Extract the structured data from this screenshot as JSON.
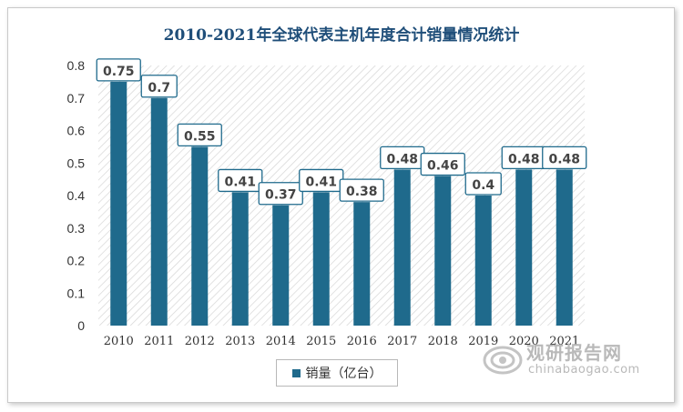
{
  "chart_data": {
    "type": "bar",
    "title": "2010-2021年全球代表主机年度合计销量情况统计",
    "categories": [
      "2010",
      "2011",
      "2012",
      "2013",
      "2014",
      "2015",
      "2016",
      "2017",
      "2018",
      "2019",
      "2020",
      "2021"
    ],
    "series": [
      {
        "name": "销量（亿台）",
        "values": [
          0.75,
          0.7,
          0.55,
          0.41,
          0.37,
          0.41,
          0.38,
          0.48,
          0.46,
          0.4,
          0.48,
          0.48
        ]
      }
    ],
    "data_labels": [
      "0.75",
      "0.7",
      "0.55",
      "0.41",
      "0.37",
      "0.41",
      "0.38",
      "0.48",
      "0.46",
      "0.4",
      "0.48",
      "0.48"
    ],
    "y_ticks": [
      "0",
      "0.1",
      "0.2",
      "0.3",
      "0.4",
      "0.5",
      "0.6",
      "0.7",
      "0.8"
    ],
    "ylim": [
      0,
      0.8
    ],
    "xlabel": "",
    "ylabel": "",
    "legend_position": "bottom",
    "bar_color": "#1f6a8c",
    "label_border_color": "#1f6a8c"
  },
  "watermark": {
    "name_cn": "观研报告网",
    "domain": "chinabaogao.com",
    "logo_icon": "swirl-logo-icon"
  }
}
